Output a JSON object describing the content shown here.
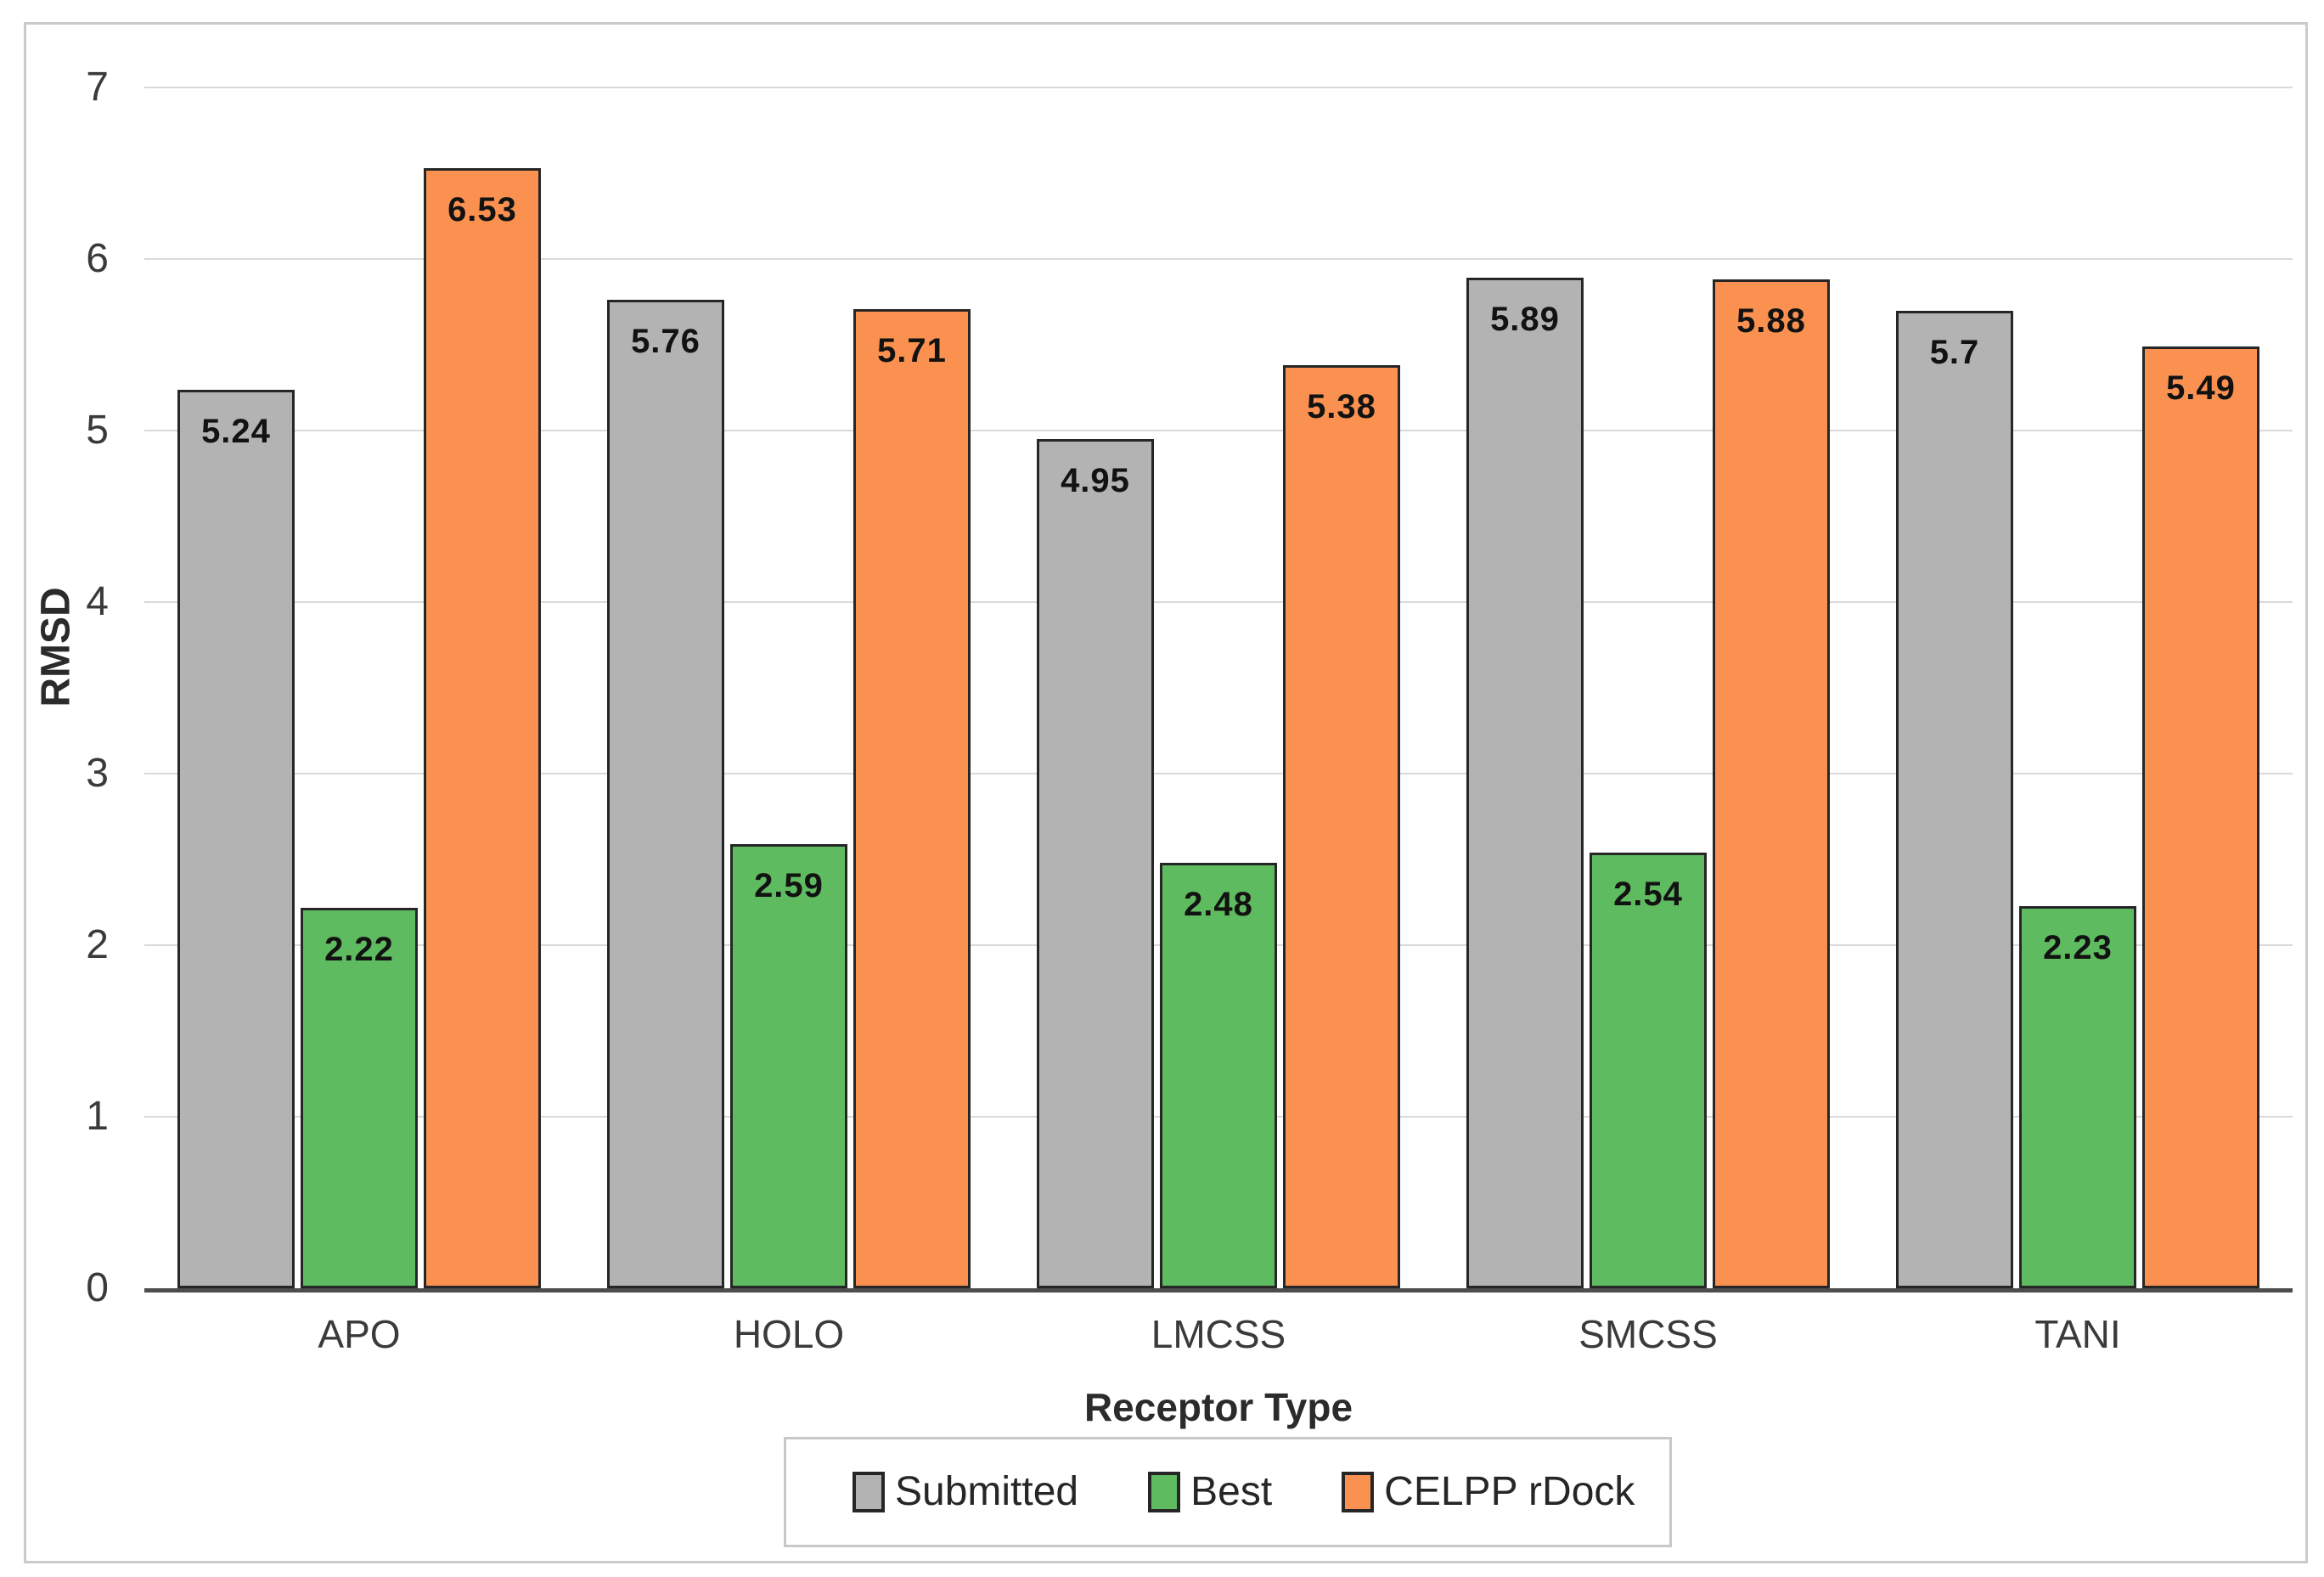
{
  "chart_data": {
    "type": "bar",
    "title": "",
    "xlabel": "Receptor Type",
    "ylabel": "RMSD",
    "categories": [
      "APO",
      "HOLO",
      "LMCSS",
      "SMCSS",
      "TANI"
    ],
    "series": [
      {
        "name": "Submitted",
        "color": "#b3b3b3",
        "values": [
          5.24,
          5.76,
          4.95,
          5.89,
          5.7
        ]
      },
      {
        "name": "Best",
        "color": "#5fbb5f",
        "values": [
          2.22,
          2.59,
          2.48,
          2.54,
          2.23
        ]
      },
      {
        "name": "CELPP rDock",
        "color": "#fa9150",
        "values": [
          6.53,
          5.71,
          5.38,
          5.88,
          5.49
        ]
      }
    ],
    "ylim": [
      0,
      7
    ],
    "yticks": [
      0,
      1,
      2,
      3,
      4,
      5,
      6,
      7
    ],
    "grid": true,
    "legend_position": "bottom",
    "bar_border_color": "#262626",
    "gridline_color": "#d9d9d9",
    "axis_line_color": "#4d4d4d"
  }
}
